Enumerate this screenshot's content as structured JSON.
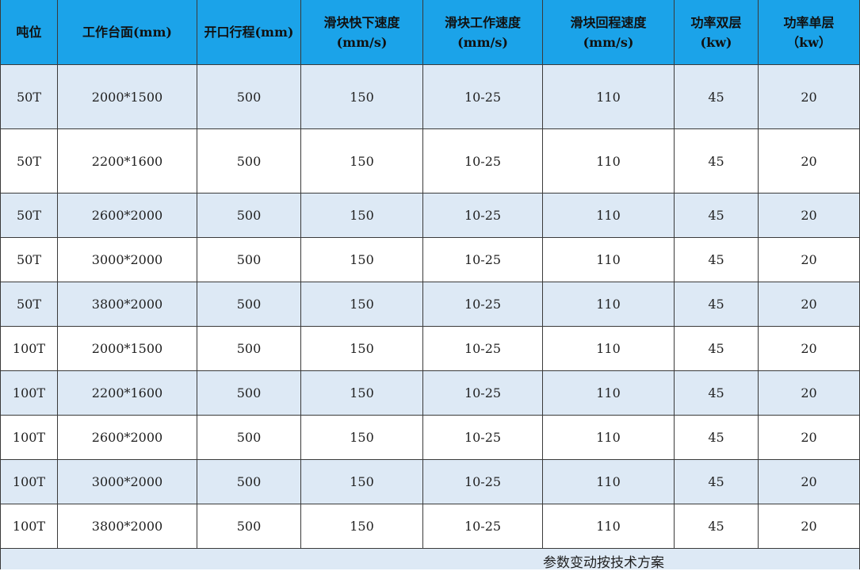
{
  "table": {
    "header": [
      [
        "吨位"
      ],
      [
        "工作台面(mm)"
      ],
      [
        "开口行程(mm)"
      ],
      [
        "滑块快下速度",
        "(mm/s)"
      ],
      [
        "滑块工作速度",
        "(mm/s)"
      ],
      [
        "滑块回程速度",
        "(mm/s)"
      ],
      [
        "功率双层",
        "(kw)"
      ],
      [
        "功率单层",
        "（kw）"
      ]
    ],
    "rows": [
      [
        "50T",
        "2000*1500",
        "500",
        "150",
        "10-25",
        "110",
        "45",
        "20"
      ],
      [
        "50T",
        "2200*1600",
        "500",
        "150",
        "10-25",
        "110",
        "45",
        "20"
      ],
      [
        "50T",
        "2600*2000",
        "500",
        "150",
        "10-25",
        "110",
        "45",
        "20"
      ],
      [
        "50T",
        "3000*2000",
        "500",
        "150",
        "10-25",
        "110",
        "45",
        "20"
      ],
      [
        "50T",
        "3800*2000",
        "500",
        "150",
        "10-25",
        "110",
        "45",
        "20"
      ],
      [
        "100T",
        "2000*1500",
        "500",
        "150",
        "10-25",
        "110",
        "45",
        "20"
      ],
      [
        "100T",
        "2200*1600",
        "500",
        "150",
        "10-25",
        "110",
        "45",
        "20"
      ],
      [
        "100T",
        "2600*2000",
        "500",
        "150",
        "10-25",
        "110",
        "45",
        "20"
      ],
      [
        "100T",
        "3000*2000",
        "500",
        "150",
        "10-25",
        "110",
        "45",
        "20"
      ],
      [
        "100T",
        "3800*2000",
        "500",
        "150",
        "10-25",
        "110",
        "45",
        "20"
      ]
    ],
    "footer": "参数变动按技术方案"
  }
}
